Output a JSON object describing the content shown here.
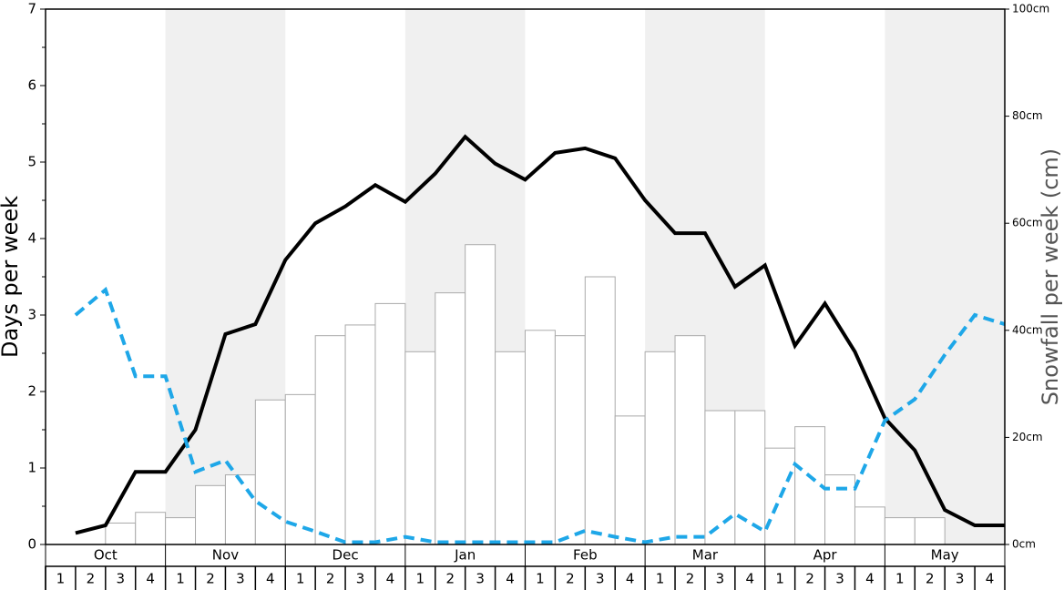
{
  "chart_data": {
    "type": "combo",
    "categories": [
      "1",
      "2",
      "3",
      "4",
      "1",
      "2",
      "3",
      "4",
      "1",
      "2",
      "3",
      "4",
      "1",
      "2",
      "3",
      "4",
      "1",
      "2",
      "3",
      "4",
      "1",
      "2",
      "3",
      "4",
      "1",
      "2",
      "3",
      "4",
      "1",
      "2",
      "3",
      "4"
    ],
    "months": [
      "Oct",
      "Nov",
      "Dec",
      "Jan",
      "Feb",
      "Mar",
      "Apr",
      "May"
    ],
    "shaded_months": [
      false,
      true,
      false,
      true,
      false,
      true,
      false,
      true
    ],
    "ylabel": "Days per week",
    "y2label": "Snowfall per week (cm)",
    "ylim": [
      0,
      7
    ],
    "yticks": [
      0,
      1,
      2,
      3,
      4,
      5,
      6,
      7
    ],
    "yticks_minor": [
      0.5,
      1.5,
      2.5,
      3.5,
      4.5,
      5.5,
      6.5
    ],
    "y2lim": [
      0,
      100
    ],
    "y2ticks": [
      {
        "value": 0,
        "label": "0cm"
      },
      {
        "value": 20,
        "label": "20cm"
      },
      {
        "value": 40,
        "label": "40cm"
      },
      {
        "value": 60,
        "label": "60cm"
      },
      {
        "value": 80,
        "label": "80cm"
      },
      {
        "value": 100,
        "label": "100cm"
      }
    ],
    "series": [
      {
        "type": "bar",
        "axis": "y2",
        "color": "#ffffff",
        "edge": "#aaaaaa",
        "values": [
          0,
          0,
          4,
          6,
          5,
          11,
          13,
          27,
          28,
          39,
          41,
          45,
          36,
          47,
          56,
          36,
          40,
          39,
          50,
          24,
          36,
          39,
          25,
          25,
          18,
          22,
          13,
          7,
          5,
          5,
          0,
          0
        ]
      },
      {
        "type": "line",
        "color": "#000000",
        "dashed": false,
        "values": [
          0.15,
          0.25,
          0.95,
          0.95,
          1.5,
          2.75,
          2.88,
          3.72,
          4.2,
          4.42,
          4.7,
          4.48,
          4.85,
          5.33,
          4.98,
          4.77,
          5.12,
          5.18,
          5.05,
          4.5,
          4.07,
          4.07,
          3.37,
          3.65,
          2.6,
          3.15,
          2.52,
          1.65,
          1.23,
          0.45,
          0.25,
          0.25
        ]
      },
      {
        "type": "line",
        "color": "#1ea7e8",
        "dashed": true,
        "values": [
          3.0,
          3.33,
          2.2,
          2.2,
          0.95,
          1.1,
          0.57,
          0.3,
          0.17,
          0.03,
          0.03,
          0.1,
          0.03,
          0.03,
          0.03,
          0.03,
          0.03,
          0.18,
          0.1,
          0.03,
          0.1,
          0.1,
          0.4,
          0.17,
          1.05,
          0.73,
          0.73,
          1.62,
          1.9,
          2.48,
          3.0,
          2.88
        ]
      }
    ]
  }
}
